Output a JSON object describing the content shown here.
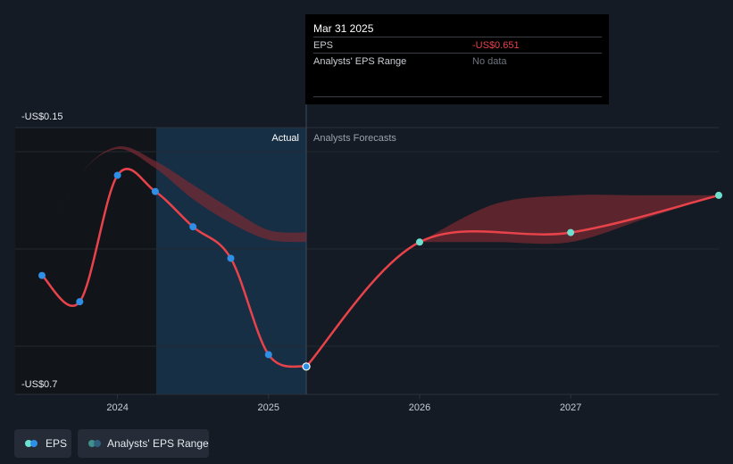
{
  "colors": {
    "background": "#151b24",
    "actual_shade": "#17324a",
    "eps_line": "#e8434b",
    "eps_dot": "#2f8fe6",
    "forecast_dot": "#6de0cf",
    "range_fill": "#7a2a33",
    "grid": "#2b323c"
  },
  "tooltip": {
    "date": "Mar 31 2025",
    "eps_label": "EPS",
    "eps_value": "-US$0.651",
    "range_label": "Analysts' EPS Range",
    "range_value": "No data"
  },
  "regions": {
    "actual_label": "Actual",
    "forecast_label": "Analysts Forecasts"
  },
  "y_axis": {
    "top_label": "-US$0.15",
    "bottom_label": "-US$0.7"
  },
  "legend": {
    "eps_label": "EPS",
    "range_label": "Analysts' EPS Range"
  },
  "chart_data": {
    "type": "line",
    "x_ticks": [
      "2024",
      "2025",
      "2026",
      "2027"
    ],
    "ylim": [
      -0.7,
      -0.15
    ],
    "xlim": [
      2023.5,
      2027.98
    ],
    "actual_series": {
      "x": [
        2023.5,
        2023.75,
        2024.0,
        2024.25,
        2024.5,
        2024.75,
        2025.0,
        2025.25
      ],
      "y": [
        -0.46,
        -0.515,
        -0.25,
        -0.284,
        -0.358,
        -0.424,
        -0.626,
        -0.651
      ]
    },
    "forecast_series": {
      "x": [
        2025.25,
        2026.0,
        2027.0,
        2027.98
      ],
      "y": [
        -0.651,
        -0.39,
        -0.37,
        -0.292
      ]
    },
    "forecast_range": {
      "x": [
        2026.0,
        2026.5,
        2027.0,
        2027.5,
        2027.98
      ],
      "high": [
        -0.39,
        -0.31,
        -0.292,
        -0.292,
        -0.292
      ],
      "low": [
        -0.39,
        -0.39,
        -0.39,
        -0.34,
        -0.292
      ]
    },
    "past_range": {
      "x": [
        2023.5,
        2023.75,
        2024.0,
        2024.25,
        2024.5,
        2024.75,
        2025.0,
        2025.25
      ],
      "high": [
        -0.4,
        -0.25,
        -0.19,
        -0.22,
        -0.27,
        -0.32,
        -0.365,
        -0.37
      ],
      "low": [
        -0.4,
        -0.25,
        -0.195,
        -0.235,
        -0.3,
        -0.35,
        -0.385,
        -0.39
      ]
    }
  }
}
